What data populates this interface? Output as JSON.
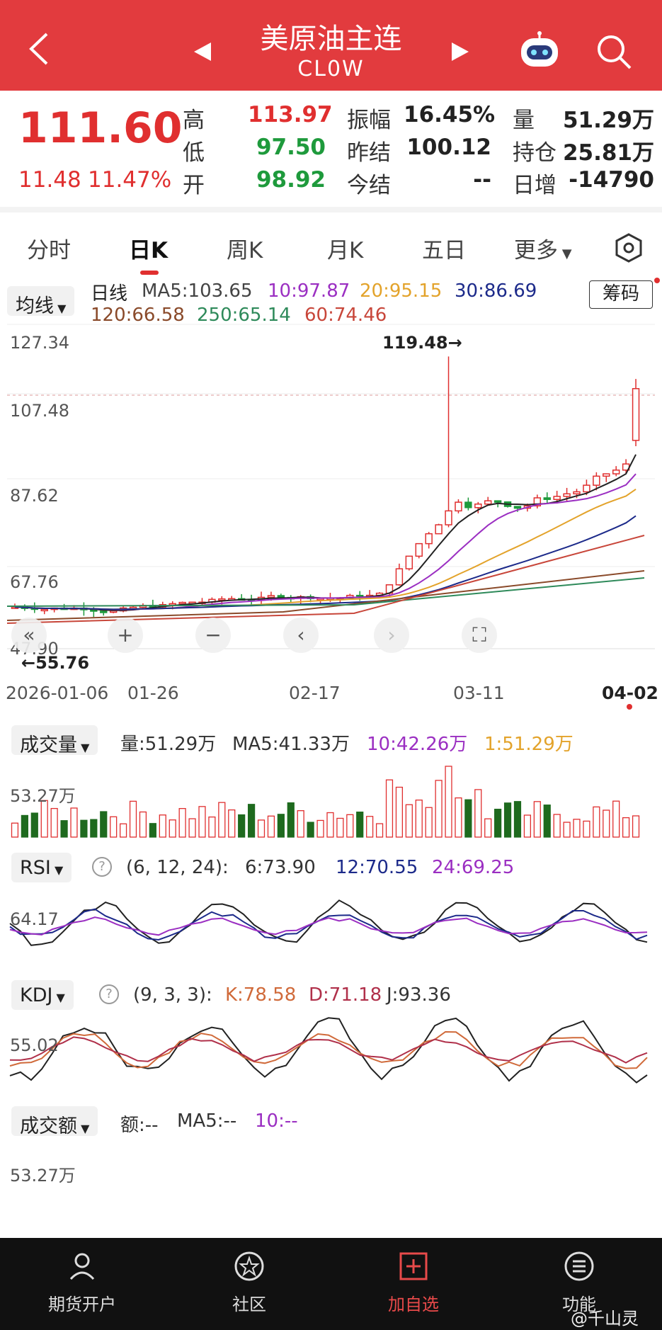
{
  "header": {
    "title": "美原油主连",
    "code": "CL0W"
  },
  "quote": {
    "price": "111.60",
    "change": "11.48",
    "change_pct": "11.47%",
    "high_label": "高",
    "high": "113.97",
    "low_label": "低",
    "low": "97.50",
    "open_label": "开",
    "open": "98.92",
    "amp_label": "振幅",
    "amp": "16.45%",
    "prev_settle_label": "昨结",
    "prev_settle": "100.12",
    "settle_label": "今结",
    "settle": "--",
    "vol_label": "量",
    "vol": "51.29万",
    "oi_label": "持仓",
    "oi": "25.81万",
    "oi_chg_label": "日增",
    "oi_chg": "-14790"
  },
  "tabs": [
    "分时",
    "日K",
    "周K",
    "月K",
    "五日"
  ],
  "tab_more": "更多",
  "main_legend": {
    "selector": "均线",
    "period": "日线",
    "ma5": "MA5:103.65",
    "ma10": "10:97.87",
    "ma20": "20:95.15",
    "ma30": "30:86.69",
    "ma120": "120:66.58",
    "ma250": "250:65.14",
    "ma60": "60:74.46",
    "chip_button": "筹码"
  },
  "price_axis": [
    "127.34",
    "107.48",
    "87.62",
    "67.76",
    "47.90"
  ],
  "max_label": "119.48→",
  "min_label": "←55.76",
  "date_axis": [
    "2026-01-06",
    "01-26",
    "02-17",
    "03-11",
    "04-02"
  ],
  "volume": {
    "selector": "成交量",
    "vol": "量:51.29万",
    "ma5": "MA5:41.33万",
    "ma10": "10:42.26万",
    "ma1": "1:51.29万",
    "axis": "53.27万"
  },
  "rsi": {
    "selector": "RSI",
    "params": "(6, 12, 24):",
    "r6": "6:73.90",
    "r12": "12:70.55",
    "r24": "24:69.25",
    "axis": "64.17"
  },
  "kdj": {
    "selector": "KDJ",
    "params": "(9, 3, 3):",
    "k": "K:78.58",
    "d": "D:71.18",
    "j": "J:93.36",
    "axis": "55.02"
  },
  "amount": {
    "selector": "成交额",
    "amt": "额:--",
    "ma5": "MA5:--",
    "ma10": "10:--",
    "axis": "53.27万"
  },
  "bottom_nav": [
    "期货开户",
    "社区",
    "加自选",
    "功能"
  ],
  "watermark": "@千山灵",
  "colors": {
    "header_red": "#e23b3e",
    "up_red": "#e02f2f",
    "down_green": "#1e9a3c",
    "ma5": "#222222",
    "ma10": "#9b2fc2",
    "ma20": "#e3a32b",
    "ma30": "#1c2a8a",
    "ma60": "#c8463a",
    "ma120": "#8a4a2a",
    "ma250": "#2e8a5a"
  },
  "nav_icons": [
    "back-icon",
    "prev-arrow-icon",
    "next-arrow-icon",
    "robot-icon",
    "search-icon",
    "settings-hexagon-icon"
  ]
}
